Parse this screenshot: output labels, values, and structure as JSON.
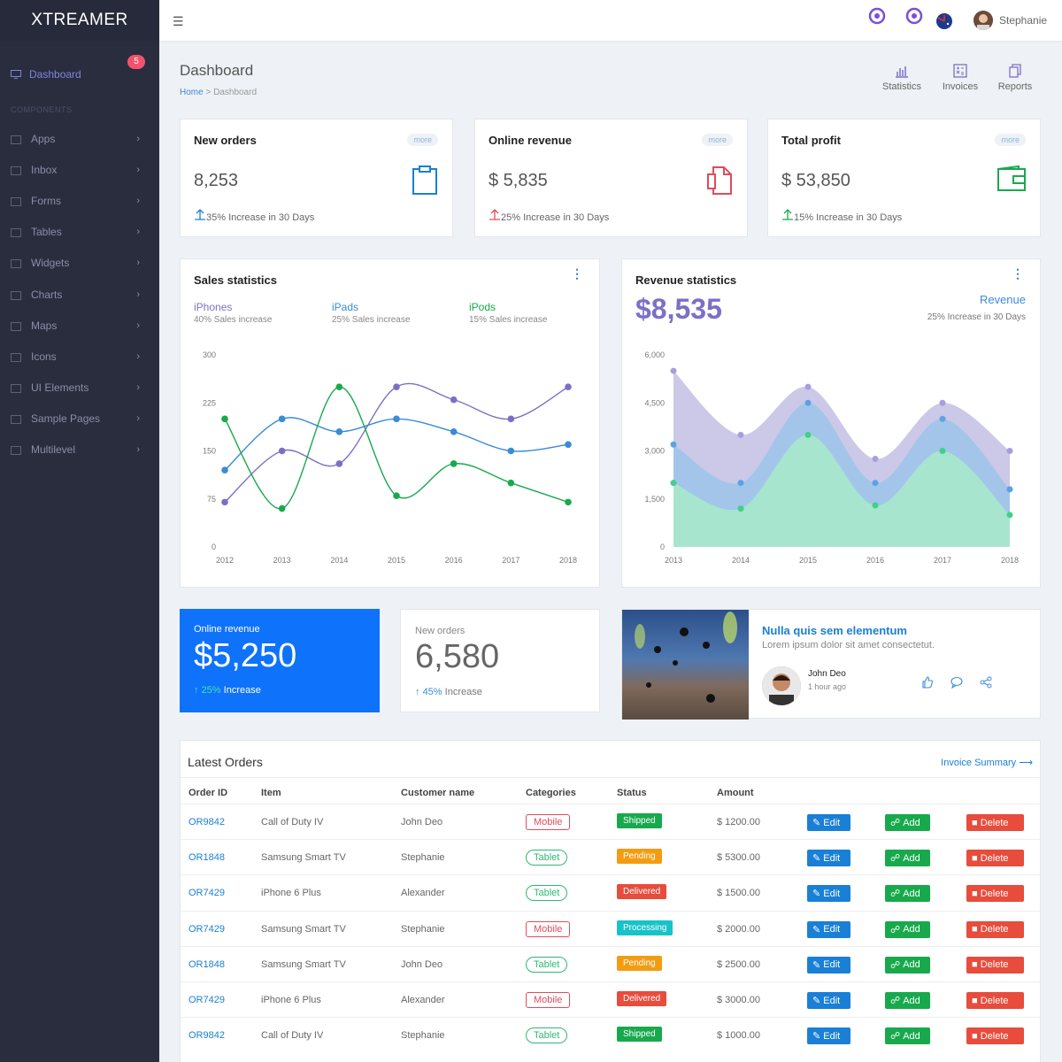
{
  "sidebar": {
    "logo": "XTREAMER",
    "dashboard_label": "Dashboard",
    "dashboard_badge": "5",
    "section_header": "COMPONENTS",
    "items": [
      {
        "label": "Apps",
        "icon": "grid-icon"
      },
      {
        "label": "Inbox",
        "icon": "mail-icon"
      },
      {
        "label": "Forms",
        "icon": "edit-icon"
      },
      {
        "label": "Tables",
        "icon": "table-icon"
      },
      {
        "label": "Widgets",
        "icon": "layers-icon"
      },
      {
        "label": "Charts",
        "icon": "bar-chart-icon"
      },
      {
        "label": "Maps",
        "icon": "map-pin-icon"
      },
      {
        "label": "Icons",
        "icon": "bolt-icon"
      },
      {
        "label": "UI Elements",
        "icon": "frame-icon"
      },
      {
        "label": "Sample Pages",
        "icon": "copy-icon"
      },
      {
        "label": "Multilevel",
        "icon": "share-icon"
      }
    ]
  },
  "topbar": {
    "user_name": "Stephanie"
  },
  "page": {
    "title": "Dashboard",
    "breadcrumb_home": "Home",
    "breadcrumb_sep": " > ",
    "breadcrumb_current": "Dashboard",
    "quick_links": [
      "Statistics",
      "Invoices",
      "Reports"
    ]
  },
  "stat_cards": [
    {
      "title": "New orders",
      "more": "more",
      "value": "8,253",
      "increase": "35% Increase in 30 Days",
      "color": "#1a7fd6"
    },
    {
      "title": "Online revenue",
      "more": "more",
      "value": "$ 5,835",
      "increase": "25% Increase in 30 Days",
      "color": "#e04c5c"
    },
    {
      "title": "Total profit",
      "more": "more",
      "value": "$ 53,850",
      "increase": "15% Increase in 30 Days",
      "color": "#18a94d"
    }
  ],
  "sales_chart": {
    "title": "Sales statistics",
    "legend": [
      {
        "name": "iPhones",
        "sub": "40% Sales increase",
        "color": "#7c6fc6"
      },
      {
        "name": "iPads",
        "sub": "25% Sales increase",
        "color": "#3a8bd8"
      },
      {
        "name": "iPods",
        "sub": "15% Sales increase",
        "color": "#18a94d"
      }
    ]
  },
  "revenue_chart": {
    "title": "Revenue statistics",
    "big_value": "$8,535",
    "label": "Revenue",
    "sub": "25% Increase in 30 Days"
  },
  "chart_data": [
    {
      "type": "line",
      "x": [
        "2012",
        "2013",
        "2014",
        "2015",
        "2016",
        "2017",
        "2018"
      ],
      "ylim": [
        0,
        300
      ],
      "yticks": [
        "0",
        "75",
        "150",
        "225",
        "300"
      ],
      "series": [
        {
          "name": "iPhones",
          "values": [
            70,
            150,
            130,
            250,
            230,
            200,
            250
          ],
          "color": "#7c6fc6"
        },
        {
          "name": "iPads",
          "values": [
            120,
            200,
            180,
            200,
            180,
            150,
            160
          ],
          "color": "#3a8bd8"
        },
        {
          "name": "iPods",
          "values": [
            200,
            60,
            250,
            80,
            130,
            100,
            70
          ],
          "color": "#18a94d"
        }
      ]
    },
    {
      "type": "area",
      "x": [
        "2013",
        "2014",
        "2015",
        "2016",
        "2017",
        "2018"
      ],
      "ylim": [
        0,
        6000
      ],
      "yticks": [
        "0",
        "1,500",
        "3,000",
        "4,500",
        "6,000"
      ],
      "series": [
        {
          "values": [
            5500,
            3500,
            5000,
            2750,
            4500,
            3000
          ],
          "color": "#c7c2e6"
        },
        {
          "values": [
            3200,
            2000,
            4500,
            2000,
            4000,
            1800
          ],
          "color": "#9fc4ea"
        },
        {
          "values": [
            2000,
            1200,
            3500,
            1300,
            3000,
            1000
          ],
          "color": "#a7e8cc"
        }
      ]
    }
  ],
  "mini_cards": {
    "blue": {
      "title": "Online revenue",
      "value": "$5,250",
      "pct": "25%",
      "suffix": "Increase"
    },
    "white": {
      "title": "New orders",
      "value": "6,580",
      "pct": "45%",
      "suffix": "Increase"
    }
  },
  "post": {
    "title": "Nulla quis sem elementum",
    "subtitle": "Lorem ipsum dolor sit amet consectetut.",
    "author": "John Deo",
    "time": "1 hour ago"
  },
  "orders": {
    "title": "Latest Orders",
    "summary_link": "Invoice Summary",
    "columns": [
      "Order ID",
      "Item",
      "Customer name",
      "Categories",
      "Status",
      "Amount"
    ],
    "edit_label": "Edit",
    "add_label": "Add",
    "delete_label": "Delete",
    "rows": [
      {
        "id": "OR9842",
        "item": "Call of Duty IV",
        "customer": "John Deo",
        "category": "Mobile",
        "status": "Shipped",
        "amount": "$ 1200.00"
      },
      {
        "id": "OR1848",
        "item": "Samsung Smart TV",
        "customer": "Stephanie",
        "category": "Tablet",
        "status": "Pending",
        "amount": "$ 5300.00"
      },
      {
        "id": "OR7429",
        "item": "iPhone 6 Plus",
        "customer": "Alexander",
        "category": "Tablet",
        "status": "Delivered",
        "amount": "$ 1500.00"
      },
      {
        "id": "OR7429",
        "item": "Samsung Smart TV",
        "customer": "Stephanie",
        "category": "Mobile",
        "status": "Processing",
        "amount": "$ 2000.00"
      },
      {
        "id": "OR1848",
        "item": "Samsung Smart TV",
        "customer": "John Deo",
        "category": "Tablet",
        "status": "Pending",
        "amount": "$ 2500.00"
      },
      {
        "id": "OR7429",
        "item": "iPhone 6 Plus",
        "customer": "Alexander",
        "category": "Mobile",
        "status": "Delivered",
        "amount": "$ 3000.00"
      },
      {
        "id": "OR9842",
        "item": "Call of Duty IV",
        "customer": "Stephanie",
        "category": "Tablet",
        "status": "Shipped",
        "amount": "$ 1000.00"
      }
    ],
    "status_colors": {
      "Shipped": "#18a94d",
      "Pending": "#f39c12",
      "Delivered": "#e74c3c",
      "Processing": "#17c3c8"
    }
  }
}
